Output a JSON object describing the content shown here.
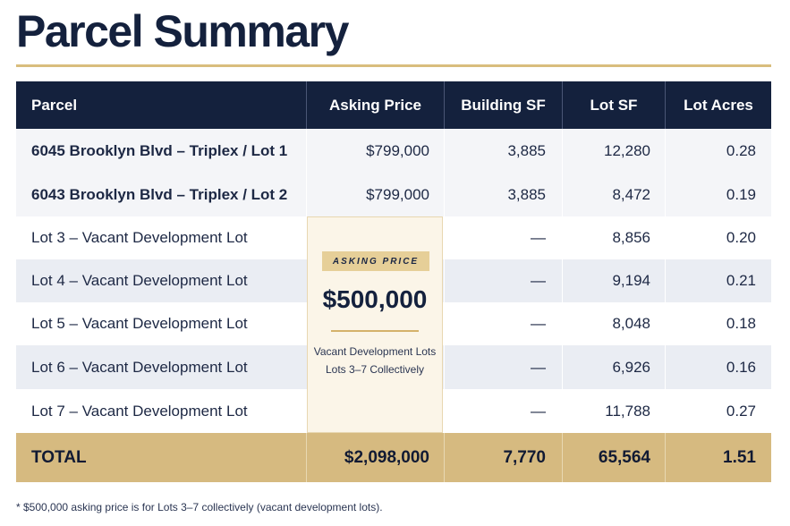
{
  "title": "Parcel Summary",
  "columns": [
    "Parcel",
    "Asking Price",
    "Building SF",
    "Lot SF",
    "Lot Acres"
  ],
  "rows": [
    {
      "parcel": "6045 Brooklyn Blvd – Triplex / Lot 1",
      "price": "$799,000",
      "bsf": "3,885",
      "lsf": "12,280",
      "acres": "0.28"
    },
    {
      "parcel": "6043 Brooklyn Blvd – Triplex / Lot 2",
      "price": "$799,000",
      "bsf": "3,885",
      "lsf": "8,472",
      "acres": "0.19"
    },
    {
      "parcel": "Lot 3 – Vacant Development Lot",
      "price": "",
      "bsf": "—",
      "lsf": "8,856",
      "acres": "0.20"
    },
    {
      "parcel": "Lot 4 – Vacant Development Lot",
      "price": "",
      "bsf": "—",
      "lsf": "9,194",
      "acres": "0.21"
    },
    {
      "parcel": "Lot 5 – Vacant Development Lot",
      "price": "",
      "bsf": "—",
      "lsf": "8,048",
      "acres": "0.18"
    },
    {
      "parcel": "Lot 6 – Vacant Development Lot",
      "price": "",
      "bsf": "—",
      "lsf": "6,926",
      "acres": "0.16"
    },
    {
      "parcel": "Lot 7 – Vacant Development Lot",
      "price": "",
      "bsf": "—",
      "lsf": "11,788",
      "acres": "0.27"
    }
  ],
  "total": {
    "label": "TOTAL",
    "price": "$2,098,000",
    "bsf": "7,770",
    "lsf": "65,564",
    "acres": "1.51"
  },
  "callout": {
    "badge": "ASKING PRICE",
    "price": "$500,000",
    "line1": "Vacant Development Lots",
    "line2": "Lots 3–7 Collectively"
  },
  "footnote": "* $500,000 asking price is for Lots 3–7 collectively (vacant development lots).",
  "colors": {
    "navy": "#14213d",
    "gold": "#d6ba80",
    "alt_row": "#eaedf3"
  }
}
